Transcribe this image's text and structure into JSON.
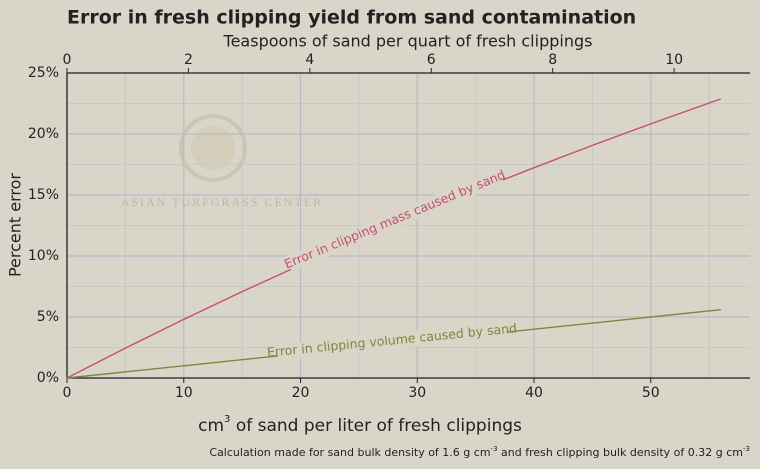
{
  "chart_data": {
    "type": "line",
    "title": "Error in fresh clipping yield from sand contamination",
    "x2_label": "Teaspoons of sand per quart of fresh clippings",
    "y_label": "Percent error",
    "x_label": [
      "cm",
      "3",
      " of sand per liter of fresh clippings"
    ],
    "footnote": [
      "Calculation made for sand bulk density of 1.6 g cm",
      "-3",
      " and fresh clipping bulk density of 0.32 g cm",
      "-3"
    ],
    "watermark": "ASIAN TURFGRASS CENTER",
    "xlim": [
      0,
      58.5
    ],
    "xticks": [
      0,
      10,
      20,
      30,
      40,
      50
    ],
    "x2lim": [
      0,
      11.25
    ],
    "x2ticks": [
      0,
      2,
      4,
      6,
      8,
      10
    ],
    "ylim": [
      0,
      25
    ],
    "yticks": [
      {
        "value": 0,
        "label": "0%"
      },
      {
        "value": 5,
        "label": "5%"
      },
      {
        "value": 10,
        "label": "10%"
      },
      {
        "value": 15,
        "label": "15%"
      },
      {
        "value": 20,
        "label": "20%"
      },
      {
        "value": 25,
        "label": "25%"
      }
    ],
    "xminorticks": [
      5,
      15,
      25,
      35,
      45,
      55
    ],
    "yminorticks": [
      2.5,
      7.5,
      12.5,
      17.5,
      22.5
    ],
    "grid": true,
    "series": [
      {
        "name": "Error in clipping mass caused by sand",
        "color": "#c4506f",
        "x": [
          0,
          5,
          10,
          15,
          20,
          25,
          30,
          35,
          40,
          45,
          50,
          55,
          56
        ],
        "values": [
          0,
          2.45,
          4.81,
          7.08,
          9.26,
          11.36,
          13.39,
          15.35,
          17.24,
          19.07,
          20.83,
          22.54,
          22.87
        ]
      },
      {
        "name": "Error in clipping volume caused by sand",
        "color": "#7a8a3c",
        "x": [
          0,
          10,
          20,
          30,
          40,
          50,
          56
        ],
        "values": [
          0,
          1.0,
          2.0,
          3.0,
          4.0,
          5.0,
          5.6
        ]
      }
    ]
  }
}
